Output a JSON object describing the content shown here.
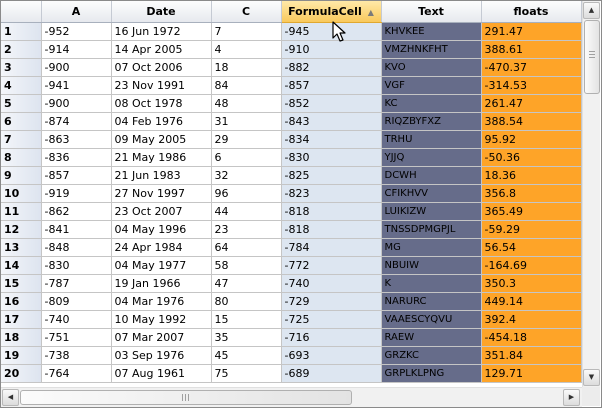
{
  "grid": {
    "columns": [
      {
        "key": "A",
        "label": "A"
      },
      {
        "key": "Date",
        "label": "Date"
      },
      {
        "key": "C",
        "label": "C"
      },
      {
        "key": "FormulaCell",
        "label": "FormulaCell",
        "sorted": "ascending"
      },
      {
        "key": "Text",
        "label": "Text"
      },
      {
        "key": "floats",
        "label": "floats"
      }
    ],
    "rows": [
      {
        "n": "1",
        "A": "-952",
        "Date": "16 Jun 1972",
        "C": "7",
        "FormulaCell": "-945",
        "Text": "KHVKEE",
        "floats": "291.47"
      },
      {
        "n": "2",
        "A": "-914",
        "Date": "14 Apr 2005",
        "C": "4",
        "FormulaCell": "-910",
        "Text": "VMZHNKFHT",
        "floats": "388.61"
      },
      {
        "n": "3",
        "A": "-900",
        "Date": "07 Oct 2006",
        "C": "18",
        "FormulaCell": "-882",
        "Text": "KVO",
        "floats": "-470.37"
      },
      {
        "n": "4",
        "A": "-941",
        "Date": "23 Nov 1991",
        "C": "84",
        "FormulaCell": "-857",
        "Text": "VGF",
        "floats": "-314.53"
      },
      {
        "n": "5",
        "A": "-900",
        "Date": "08 Oct 1978",
        "C": "48",
        "FormulaCell": "-852",
        "Text": "KC",
        "floats": "261.47"
      },
      {
        "n": "6",
        "A": "-874",
        "Date": "04 Feb 1976",
        "C": "31",
        "FormulaCell": "-843",
        "Text": "RIQZBYFXZ",
        "floats": "388.54"
      },
      {
        "n": "7",
        "A": "-863",
        "Date": "09 May 2005",
        "C": "29",
        "FormulaCell": "-834",
        "Text": "TRHU",
        "floats": "95.92"
      },
      {
        "n": "8",
        "A": "-836",
        "Date": "21 May 1986",
        "C": "6",
        "FormulaCell": "-830",
        "Text": "YJJQ",
        "floats": "-50.36"
      },
      {
        "n": "9",
        "A": "-857",
        "Date": "21 Jun 1983",
        "C": "32",
        "FormulaCell": "-825",
        "Text": "DCWH",
        "floats": "18.36"
      },
      {
        "n": "10",
        "A": "-919",
        "Date": "27 Nov 1997",
        "C": "96",
        "FormulaCell": "-823",
        "Text": "CFIKHVV",
        "floats": "356.8"
      },
      {
        "n": "11",
        "A": "-862",
        "Date": "23 Oct 2007",
        "C": "44",
        "FormulaCell": "-818",
        "Text": "LUIKIZW",
        "floats": "365.49"
      },
      {
        "n": "12",
        "A": "-841",
        "Date": "04 May 1996",
        "C": "23",
        "FormulaCell": "-818",
        "Text": "TNSSDPMGPJL",
        "floats": "-59.29"
      },
      {
        "n": "13",
        "A": "-848",
        "Date": "24 Apr 1984",
        "C": "64",
        "FormulaCell": "-784",
        "Text": "MG",
        "floats": "56.54"
      },
      {
        "n": "14",
        "A": "-830",
        "Date": "04 May 1977",
        "C": "58",
        "FormulaCell": "-772",
        "Text": "NBUIW",
        "floats": "-164.69"
      },
      {
        "n": "15",
        "A": "-787",
        "Date": "19 Jan 1966",
        "C": "47",
        "FormulaCell": "-740",
        "Text": "K",
        "floats": "350.3"
      },
      {
        "n": "16",
        "A": "-809",
        "Date": "04 Mar 1976",
        "C": "80",
        "FormulaCell": "-729",
        "Text": "NARURC",
        "floats": "449.14"
      },
      {
        "n": "17",
        "A": "-740",
        "Date": "10 May 1992",
        "C": "15",
        "FormulaCell": "-725",
        "Text": "VAAESCYQVU",
        "floats": "392.4"
      },
      {
        "n": "18",
        "A": "-751",
        "Date": "07 Mar 2007",
        "C": "35",
        "FormulaCell": "-716",
        "Text": "RAEW",
        "floats": "-454.18"
      },
      {
        "n": "19",
        "A": "-738",
        "Date": "03 Sep 1976",
        "C": "45",
        "FormulaCell": "-693",
        "Text": "GRZKC",
        "floats": "351.84"
      },
      {
        "n": "20",
        "A": "-764",
        "Date": "07 Aug 1961",
        "C": "75",
        "FormulaCell": "-689",
        "Text": "GRPLKLPNG",
        "floats": "129.71"
      }
    ]
  },
  "icons": {
    "sort": "sort-ascending-icon",
    "cursor": "mouse-pointer-icon",
    "scroll_up": "arrow-up-icon",
    "scroll_down": "arrow-down-icon",
    "scroll_left": "arrow-left-icon",
    "scroll_right": "arrow-right-icon"
  },
  "colors": {
    "formula_column": "#dde6f1",
    "text_column": "#666c8a",
    "floats_column": "#fea428",
    "sorted_header": "#f9c95c"
  }
}
